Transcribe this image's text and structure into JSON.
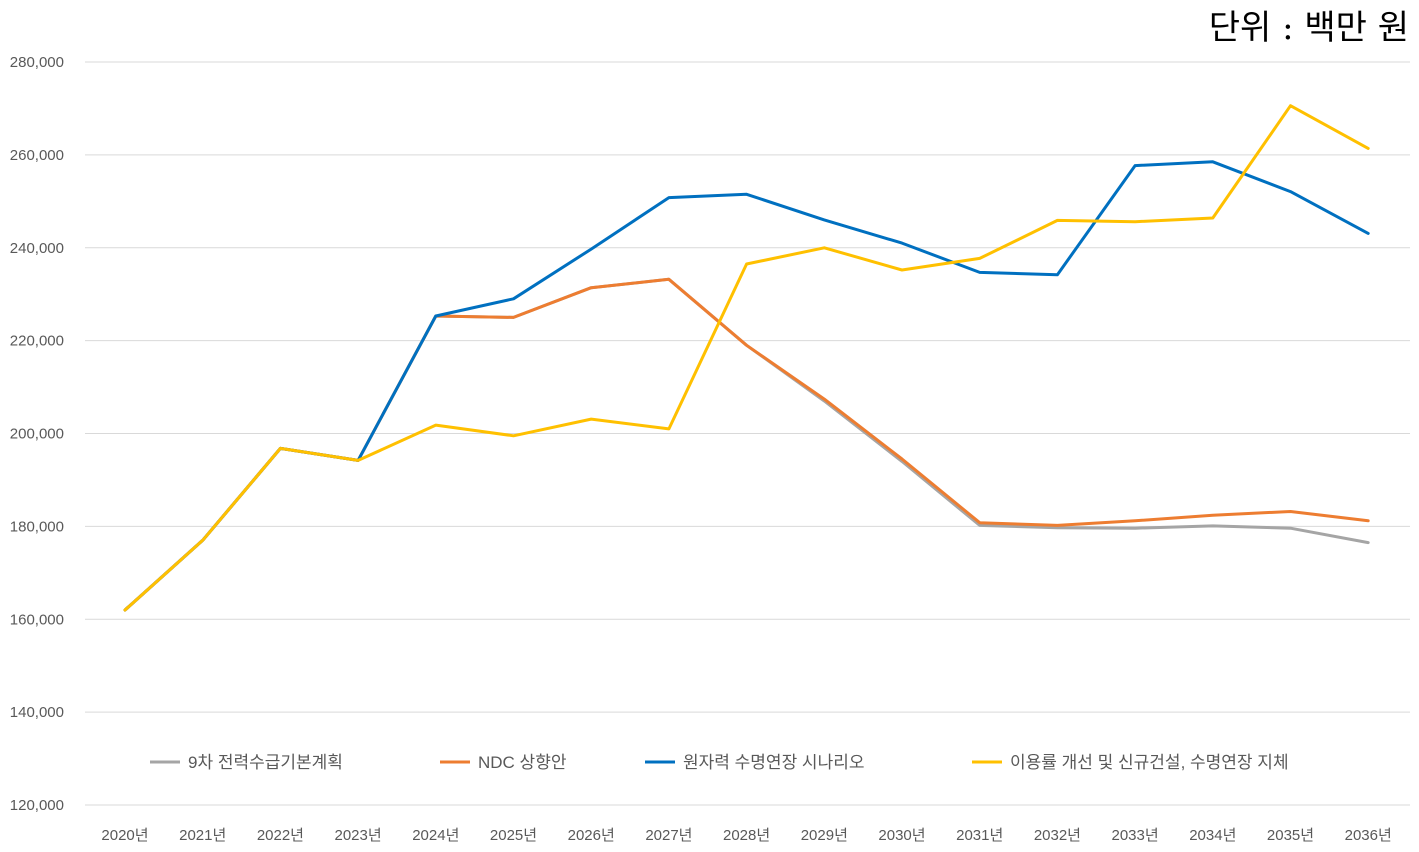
{
  "unit_label": "단위 : 백만 원",
  "chart_data": {
    "type": "line",
    "title": "",
    "xlabel": "",
    "ylabel": "",
    "ylim": [
      120000,
      280000
    ],
    "yticks": [
      120000,
      140000,
      160000,
      180000,
      200000,
      220000,
      240000,
      260000,
      280000
    ],
    "ytick_labels": [
      "120,000",
      "140,000",
      "160,000",
      "180,000",
      "200,000",
      "220,000",
      "240,000",
      "260,000",
      "280,000"
    ],
    "grid": true,
    "legend_position": "bottom-inside",
    "categories": [
      "2020년",
      "2021년",
      "2022년",
      "2023년",
      "2024년",
      "2025년",
      "2026년",
      "2027년",
      "2028년",
      "2029년",
      "2030년",
      "2031년",
      "2032년",
      "2033년",
      "2034년",
      "2035년",
      "2036년"
    ],
    "series": [
      {
        "name": "9차 전력수급기본계획",
        "color": "#A5A5A5",
        "values": [
          162000,
          177000,
          196800,
          194200,
          225300,
          225000,
          231400,
          233200,
          219000,
          207000,
          194000,
          180200,
          179700,
          179600,
          180100,
          179600,
          176500
        ]
      },
      {
        "name": "NDC 상향안",
        "color": "#ED7D31",
        "values": [
          162000,
          177000,
          196800,
          194200,
          225300,
          225000,
          231400,
          233200,
          219000,
          207400,
          194500,
          180800,
          180200,
          181200,
          182400,
          183200,
          181200
        ]
      },
      {
        "name": "원자력 수명연장 시나리오",
        "color": "#0070C0",
        "values": [
          162000,
          177000,
          196800,
          194200,
          225300,
          229000,
          239700,
          250800,
          251500,
          246000,
          241000,
          234700,
          234200,
          257700,
          258500,
          252100,
          243100
        ]
      },
      {
        "name": "이용률 개선 및 신규건설, 수명연장 지체",
        "color": "#FFC000",
        "values": [
          162000,
          177000,
          196800,
          194200,
          201800,
          199500,
          203100,
          201000,
          236500,
          240000,
          235200,
          237700,
          245900,
          245600,
          246400,
          270600,
          261400
        ]
      }
    ]
  }
}
